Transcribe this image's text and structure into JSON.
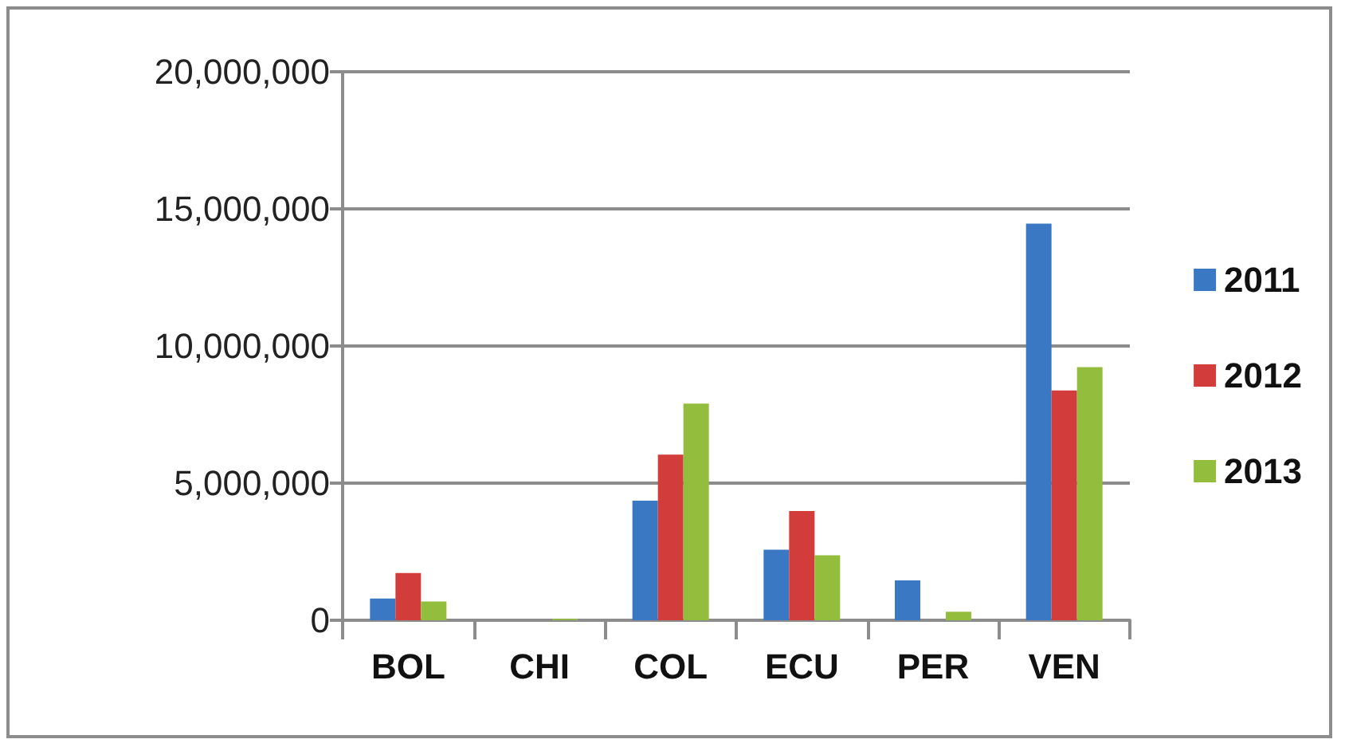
{
  "chart_data": {
    "type": "bar",
    "categories": [
      "BOL",
      "CHI",
      "COL",
      "ECU",
      "PER",
      "VEN"
    ],
    "series": [
      {
        "name": "2011",
        "color": "#3a78c4",
        "values": [
          790000,
          0,
          4360000,
          2570000,
          1450000,
          14460000
        ]
      },
      {
        "name": "2012",
        "color": "#d23c3a",
        "values": [
          1720000,
          0,
          6040000,
          3980000,
          0,
          8380000
        ]
      },
      {
        "name": "2013",
        "color": "#93bd3c",
        "values": [
          680000,
          50000,
          7900000,
          2370000,
          310000,
          9230000
        ]
      }
    ],
    "ylim": [
      0,
      20000000
    ],
    "yticks": [
      {
        "value": 0,
        "label": "0"
      },
      {
        "value": 5000000,
        "label": "5,000,000"
      },
      {
        "value": 10000000,
        "label": "10,000,000"
      },
      {
        "value": 15000000,
        "label": "15,000,000"
      },
      {
        "value": 20000000,
        "label": "20,000,000"
      }
    ],
    "grid": "y",
    "legend": "right"
  }
}
